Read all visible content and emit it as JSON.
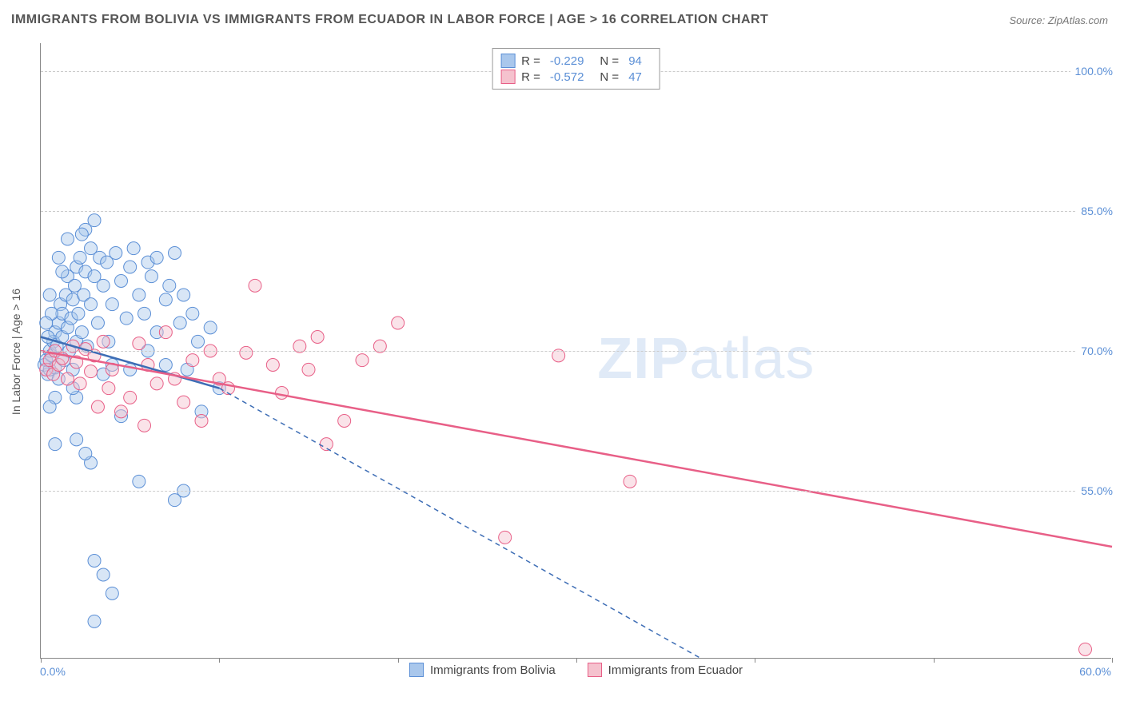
{
  "title": "IMMIGRANTS FROM BOLIVIA VS IMMIGRANTS FROM ECUADOR IN LABOR FORCE | AGE > 16 CORRELATION CHART",
  "source": "Source: ZipAtlas.com",
  "ylabel": "In Labor Force | Age > 16",
  "watermark_zip": "ZIP",
  "watermark_atlas": "atlas",
  "chart": {
    "type": "scatter",
    "xlim": [
      0,
      60
    ],
    "ylim": [
      37,
      103
    ],
    "xticks": [
      0,
      10,
      20,
      30,
      40,
      50,
      60
    ],
    "xtick_labels": [
      "0.0%",
      "",
      "",
      "",
      "",
      "",
      "60.0%"
    ],
    "yticks": [
      55,
      70,
      85,
      100
    ],
    "ytick_labels": [
      "55.0%",
      "70.0%",
      "85.0%",
      "100.0%"
    ],
    "background_color": "#ffffff",
    "grid_color": "#cccccc",
    "point_radius": 8,
    "point_opacity": 0.45,
    "series": [
      {
        "name": "Immigrants from Bolivia",
        "color_fill": "#a9c7ec",
        "color_stroke": "#5b8fd6",
        "line_color": "#3d6db5",
        "R": "-0.229",
        "N": "94",
        "trend_solid": {
          "x1": 0,
          "y1": 71.5,
          "x2": 10,
          "y2": 66.0
        },
        "trend_dash": {
          "x1": 10,
          "y1": 66.0,
          "x2": 37,
          "y2": 37.0
        },
        "points": [
          [
            0.2,
            68.5
          ],
          [
            0.3,
            69
          ],
          [
            0.4,
            67.5
          ],
          [
            0.5,
            68
          ],
          [
            0.5,
            70
          ],
          [
            0.6,
            69.5
          ],
          [
            0.7,
            71
          ],
          [
            0.8,
            72
          ],
          [
            0.8,
            68.2
          ],
          [
            0.9,
            70.5
          ],
          [
            1.0,
            73
          ],
          [
            1.0,
            67
          ],
          [
            1.1,
            75
          ],
          [
            1.2,
            71.5
          ],
          [
            1.2,
            74
          ],
          [
            1.3,
            69
          ],
          [
            1.4,
            76
          ],
          [
            1.5,
            72.5
          ],
          [
            1.5,
            78
          ],
          [
            1.6,
            70
          ],
          [
            1.7,
            73.5
          ],
          [
            1.8,
            75.5
          ],
          [
            1.8,
            68
          ],
          [
            1.9,
            77
          ],
          [
            2.0,
            71
          ],
          [
            2.0,
            79
          ],
          [
            2.1,
            74
          ],
          [
            2.2,
            80
          ],
          [
            2.3,
            72
          ],
          [
            2.4,
            76
          ],
          [
            2.5,
            78.5
          ],
          [
            2.5,
            83
          ],
          [
            2.6,
            70.5
          ],
          [
            2.8,
            81
          ],
          [
            2.8,
            75
          ],
          [
            3.0,
            78
          ],
          [
            3.0,
            84
          ],
          [
            3.2,
            73
          ],
          [
            3.3,
            80
          ],
          [
            3.5,
            77
          ],
          [
            3.5,
            67.5
          ],
          [
            3.7,
            79.5
          ],
          [
            3.8,
            71
          ],
          [
            4.0,
            75
          ],
          [
            4.0,
            68.5
          ],
          [
            4.2,
            80.5
          ],
          [
            4.5,
            63
          ],
          [
            4.5,
            77.5
          ],
          [
            4.8,
            73.5
          ],
          [
            5.0,
            79
          ],
          [
            5.0,
            68
          ],
          [
            5.2,
            81
          ],
          [
            5.5,
            76
          ],
          [
            5.5,
            56
          ],
          [
            5.8,
            74
          ],
          [
            6.0,
            79.5
          ],
          [
            6.0,
            70
          ],
          [
            6.2,
            78
          ],
          [
            6.5,
            72
          ],
          [
            6.5,
            80
          ],
          [
            7.0,
            75.5
          ],
          [
            7.0,
            68.5
          ],
          [
            7.2,
            77
          ],
          [
            7.5,
            54
          ],
          [
            7.5,
            80.5
          ],
          [
            7.8,
            73
          ],
          [
            8.0,
            76
          ],
          [
            8.0,
            55
          ],
          [
            8.2,
            68
          ],
          [
            8.5,
            74
          ],
          [
            8.8,
            71
          ],
          [
            9.0,
            63.5
          ],
          [
            9.5,
            72.5
          ],
          [
            10.0,
            66
          ],
          [
            0.8,
            60
          ],
          [
            2.3,
            82.5
          ],
          [
            2.0,
            60.5
          ],
          [
            1.5,
            82
          ],
          [
            1.0,
            80
          ],
          [
            1.2,
            78.5
          ],
          [
            0.6,
            74
          ],
          [
            0.4,
            71.5
          ],
          [
            0.3,
            73
          ],
          [
            0.5,
            76
          ],
          [
            3.0,
            41
          ],
          [
            4.0,
            44
          ],
          [
            3.5,
            46
          ],
          [
            3.0,
            47.5
          ],
          [
            2.8,
            58
          ],
          [
            2.5,
            59
          ],
          [
            2.0,
            65
          ],
          [
            1.8,
            66
          ],
          [
            0.8,
            65
          ],
          [
            0.5,
            64
          ]
        ]
      },
      {
        "name": "Immigrants from Ecuador",
        "color_fill": "#f5c2ce",
        "color_stroke": "#e85f87",
        "line_color": "#e85f87",
        "R": "-0.572",
        "N": "47",
        "trend_solid": {
          "x1": 0,
          "y1": 70.0,
          "x2": 60,
          "y2": 49.0
        },
        "trend_dash": null,
        "points": [
          [
            0.3,
            68
          ],
          [
            0.5,
            69
          ],
          [
            0.7,
            67.5
          ],
          [
            0.8,
            70
          ],
          [
            1.0,
            68.5
          ],
          [
            1.2,
            69.2
          ],
          [
            1.5,
            67
          ],
          [
            1.8,
            70.5
          ],
          [
            2.0,
            68.8
          ],
          [
            2.2,
            66.5
          ],
          [
            2.5,
            70.2
          ],
          [
            2.8,
            67.8
          ],
          [
            3.0,
            69.5
          ],
          [
            3.2,
            64
          ],
          [
            3.5,
            71
          ],
          [
            3.8,
            66
          ],
          [
            4.0,
            68
          ],
          [
            4.5,
            63.5
          ],
          [
            5.0,
            65
          ],
          [
            5.5,
            70.8
          ],
          [
            5.8,
            62
          ],
          [
            6.0,
            68.5
          ],
          [
            6.5,
            66.5
          ],
          [
            7.0,
            72
          ],
          [
            7.5,
            67
          ],
          [
            8.0,
            64.5
          ],
          [
            8.5,
            69
          ],
          [
            9.0,
            62.5
          ],
          [
            9.5,
            70
          ],
          [
            10.0,
            67
          ],
          [
            10.5,
            66
          ],
          [
            11.5,
            69.8
          ],
          [
            12.0,
            77
          ],
          [
            13.0,
            68.5
          ],
          [
            13.5,
            65.5
          ],
          [
            14.5,
            70.5
          ],
          [
            15.0,
            68
          ],
          [
            15.5,
            71.5
          ],
          [
            18.0,
            69
          ],
          [
            19.0,
            70.5
          ],
          [
            20.0,
            73
          ],
          [
            16.0,
            60
          ],
          [
            17.0,
            62.5
          ],
          [
            26.0,
            50
          ],
          [
            29.0,
            69.5
          ],
          [
            33.0,
            56
          ],
          [
            58.5,
            38
          ]
        ]
      }
    ],
    "legend_bottom": [
      {
        "label": "Immigrants from Bolivia",
        "fill": "#a9c7ec",
        "stroke": "#5b8fd6"
      },
      {
        "label": "Immigrants from Ecuador",
        "fill": "#f5c2ce",
        "stroke": "#e85f87"
      }
    ]
  }
}
